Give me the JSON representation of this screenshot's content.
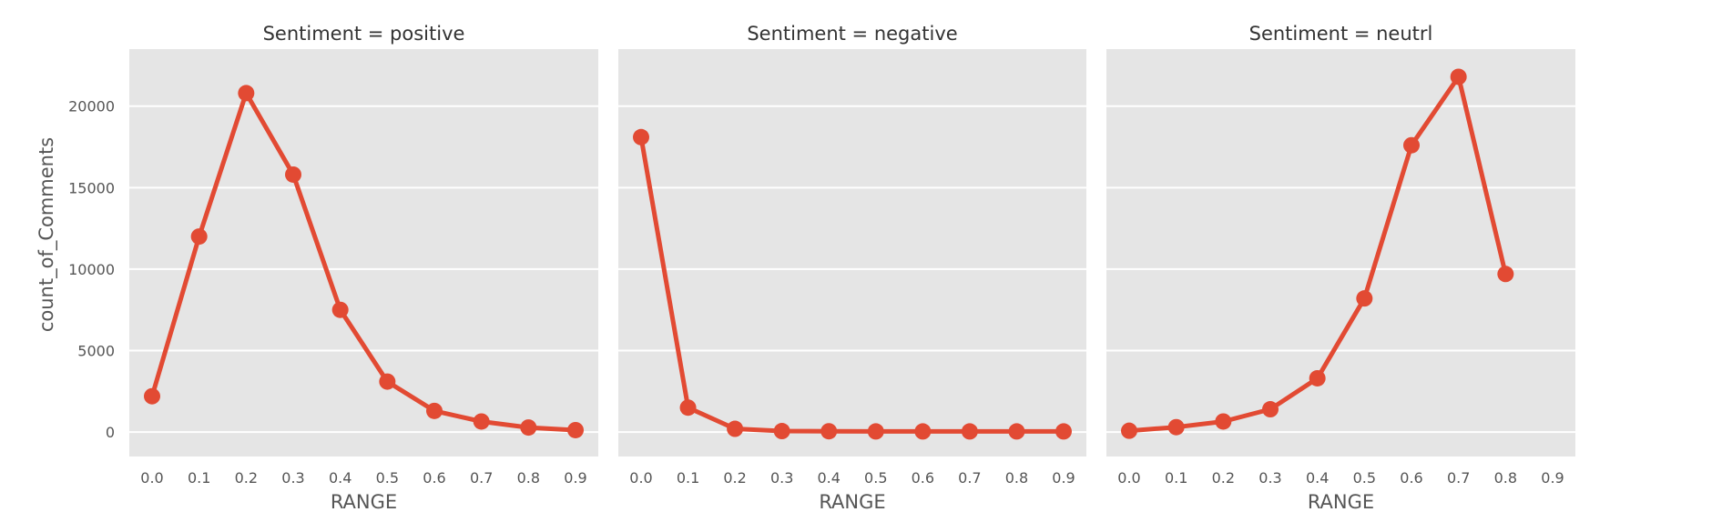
{
  "chart_data": {
    "type": "line",
    "style": "point plot facets, grey panel background, white gridlines",
    "colors": {
      "series": "#E24A33",
      "panel": "#E5E5E5",
      "grid": "#FFFFFF"
    },
    "ylabel": "count_of_Comments",
    "xlabel": "RANGE",
    "categories": [
      "0.0",
      "0.1",
      "0.2",
      "0.3",
      "0.4",
      "0.5",
      "0.6",
      "0.7",
      "0.8",
      "0.9"
    ],
    "yticks": [
      0,
      5000,
      10000,
      15000,
      20000
    ],
    "ylim": [
      -1500,
      23500
    ],
    "grid": true,
    "facets": [
      {
        "title": "Sentiment = positive",
        "values": [
          2200,
          12000,
          20800,
          15800,
          7500,
          3100,
          1300,
          650,
          280,
          120
        ]
      },
      {
        "title": "Sentiment = negative",
        "values": [
          18100,
          1500,
          200,
          60,
          50,
          40,
          40,
          40,
          40,
          40
        ]
      },
      {
        "title": "Sentiment = neutrl",
        "values": [
          80,
          300,
          650,
          1400,
          3300,
          8200,
          17600,
          21800,
          9700,
          null
        ]
      }
    ]
  }
}
